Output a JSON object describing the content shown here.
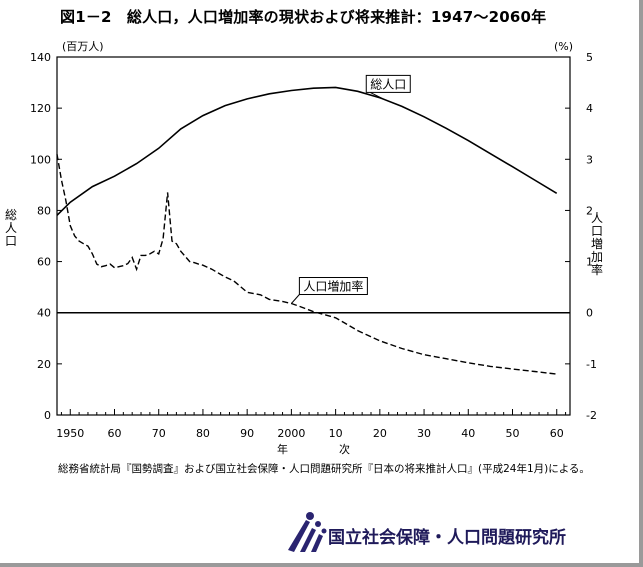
{
  "figure": {
    "title": "図1－2　総人口，人口増加率の現状および将来推計：1947～2060年",
    "source_note": "総務省統計局『国勢調査』および国立社会保障・人口問題研究所『日本の将来推計人口』(平成24年1月)による。",
    "institute_name": "国立社会保障・人口問題研究所"
  },
  "chart_data": {
    "type": "line",
    "left_axis": {
      "unit_label": "(百万人)",
      "title": "総人口",
      "range": [
        0,
        140
      ],
      "ticks": [
        0,
        20,
        40,
        60,
        80,
        100,
        120,
        140
      ]
    },
    "right_axis": {
      "unit_label": "(%)",
      "title": "人口増加率",
      "range": [
        -2,
        5
      ],
      "ticks": [
        -2,
        -1,
        0,
        1,
        2,
        3,
        4,
        5
      ]
    },
    "x_axis": {
      "range": [
        1947,
        2063
      ],
      "ticks": [
        1950,
        1960,
        1970,
        1980,
        1990,
        2000,
        2010,
        2020,
        2030,
        2040,
        2050,
        2060
      ],
      "tick_labels": [
        "1950",
        "60",
        "70",
        "80",
        "90",
        "2000",
        "10",
        "20",
        "30",
        "40",
        "50",
        "60"
      ],
      "label_chars": [
        "年",
        "次"
      ]
    },
    "zero_line": 0,
    "series": [
      {
        "name": "総人口",
        "axis": "left",
        "style": "solid",
        "x": [
          1947,
          1950,
          1955,
          1960,
          1965,
          1970,
          1975,
          1980,
          1985,
          1990,
          1995,
          2000,
          2005,
          2010,
          2015,
          2020,
          2025,
          2030,
          2035,
          2040,
          2045,
          2050,
          2055,
          2060
        ],
        "y": [
          78.1,
          83.2,
          89.3,
          93.4,
          98.3,
          104.3,
          111.9,
          117.1,
          121.0,
          123.6,
          125.6,
          126.9,
          127.8,
          128.1,
          126.6,
          124.1,
          120.7,
          116.6,
          112.1,
          107.3,
          102.2,
          97.1,
          91.9,
          86.7
        ]
      },
      {
        "name": "人口増加率",
        "axis": "right",
        "style": "dashed",
        "x": [
          1947,
          1948,
          1949,
          1950,
          1951,
          1952,
          1953,
          1954,
          1955,
          1956,
          1957,
          1958,
          1959,
          1960,
          1961,
          1962,
          1963,
          1964,
          1965,
          1966,
          1967,
          1968,
          1969,
          1970,
          1971,
          1972,
          1973,
          1974,
          1975,
          1976,
          1977,
          1978,
          1979,
          1980,
          1982,
          1984,
          1985,
          1987,
          1990,
          1993,
          1995,
          1998,
          2000,
          2002,
          2005,
          2008,
          2010,
          2012,
          2015,
          2020,
          2025,
          2030,
          2035,
          2040,
          2045,
          2050,
          2055,
          2060
        ],
        "y": [
          3.1,
          2.6,
          2.2,
          1.7,
          1.5,
          1.4,
          1.35,
          1.3,
          1.15,
          0.95,
          0.9,
          0.92,
          0.95,
          0.88,
          0.9,
          0.92,
          0.96,
          1.08,
          0.85,
          1.12,
          1.12,
          1.15,
          1.2,
          1.15,
          1.45,
          2.35,
          1.4,
          1.35,
          1.2,
          1.1,
          1.0,
          0.98,
          0.95,
          0.93,
          0.85,
          0.75,
          0.7,
          0.62,
          0.4,
          0.35,
          0.26,
          0.22,
          0.18,
          0.12,
          0.02,
          -0.05,
          -0.1,
          -0.2,
          -0.35,
          -0.55,
          -0.7,
          -0.82,
          -0.9,
          -0.98,
          -1.05,
          -1.1,
          -1.15,
          -1.2
        ]
      }
    ],
    "annotations": [
      {
        "text": "総人口",
        "series": "総人口",
        "at_x": 2021
      },
      {
        "text": "人口増加率",
        "series": "人口増加率",
        "at_x": 2000
      }
    ],
    "grid": false
  }
}
